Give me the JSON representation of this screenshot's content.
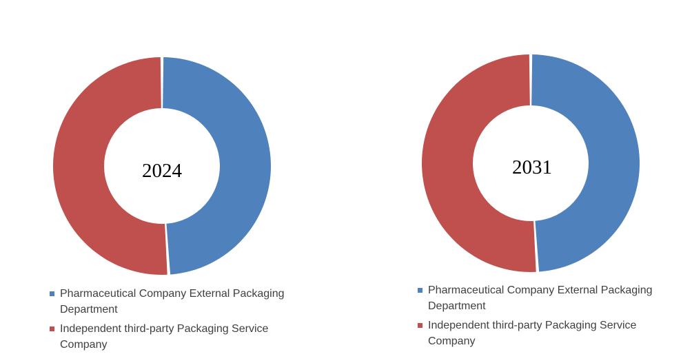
{
  "chart_data": [
    {
      "type": "pie",
      "center_label": "2024",
      "categories": [
        "Pharmaceutical Company External Packaging Department",
        "Independent third-party Packaging Service Company"
      ],
      "values": [
        49,
        51
      ],
      "colors": [
        "#4F81BD",
        "#C0504D"
      ],
      "legend_position": "bottom"
    },
    {
      "type": "pie",
      "center_label": "2031",
      "categories": [
        "Pharmaceutical Company External Packaging Department",
        "Independent third-party Packaging Service Company"
      ],
      "values": [
        49,
        51
      ],
      "colors": [
        "#4F81BD",
        "#C0504D"
      ],
      "legend_position": "bottom"
    }
  ]
}
